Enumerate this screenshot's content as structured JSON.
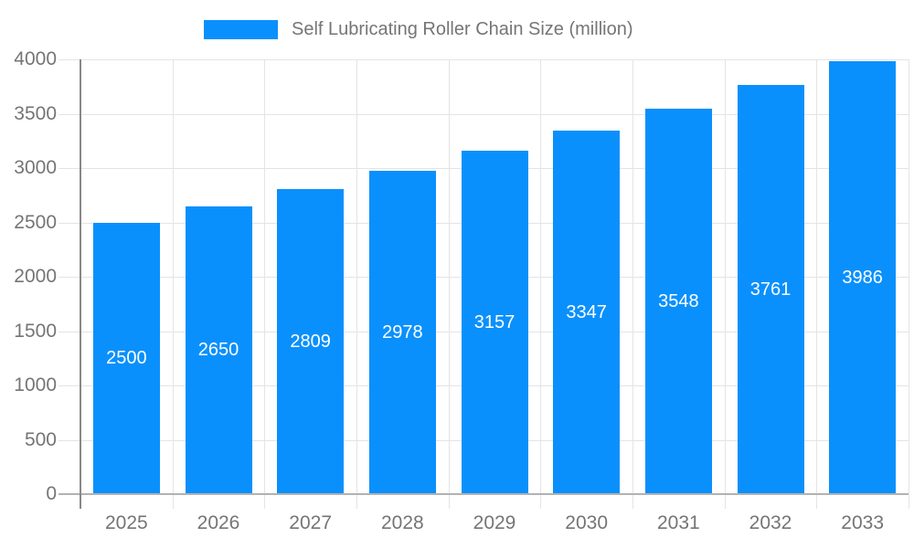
{
  "chart_data": {
    "type": "bar",
    "title": "",
    "legend": {
      "label": "Self Lubricating Roller Chain Size (million)",
      "position": "top"
    },
    "categories": [
      "2025",
      "2026",
      "2027",
      "2028",
      "2029",
      "2030",
      "2031",
      "2032",
      "2033"
    ],
    "series": [
      {
        "name": "Self Lubricating Roller Chain Size (million)",
        "values": [
          2500,
          2650,
          2809,
          2978,
          3157,
          3347,
          3548,
          3761,
          3986
        ]
      }
    ],
    "xlabel": "",
    "ylabel": "",
    "ylim": [
      0,
      4000
    ],
    "yticks": [
      0,
      500,
      1000,
      1500,
      2000,
      2500,
      3000,
      3500,
      4000
    ],
    "grid": true,
    "bar_labels_shown": true,
    "colors": {
      "bar": "#0a90fc",
      "bar_value_label": "#ffffff",
      "axis_text": "#757575",
      "gridline": "#e4e4e4",
      "y_axis_line": "#888888",
      "x_axis_line": "#b2b2b2"
    }
  }
}
